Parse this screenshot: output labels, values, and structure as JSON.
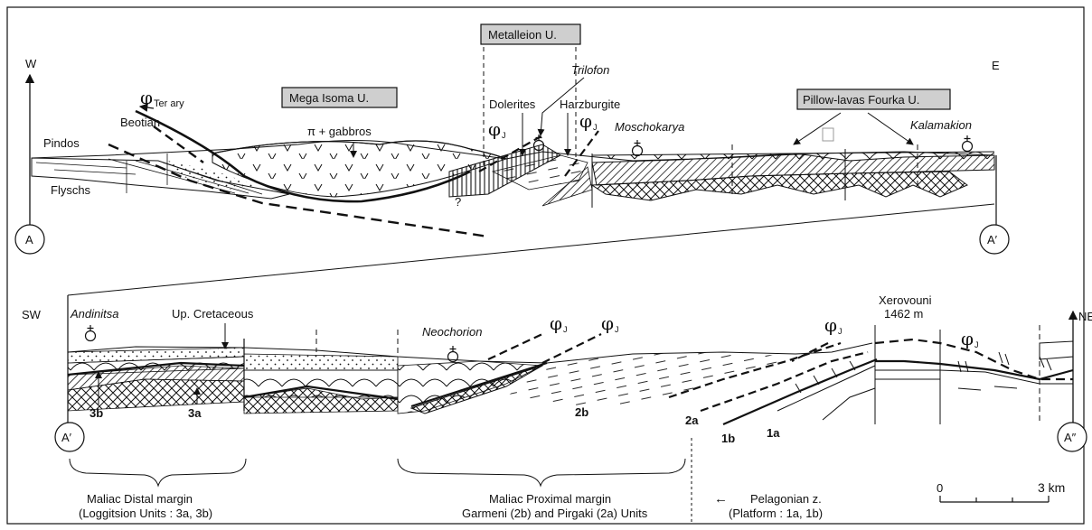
{
  "top": {
    "west": "W",
    "east": "E",
    "point_left": "A",
    "point_right": "A′",
    "units": {
      "metalleion": "Metalleion U.",
      "mega_isoma": "Mega Isoma U.",
      "pillow": "Pillow-lavas Fourka U."
    },
    "labels": {
      "phi": "φ",
      "tertiary": "Ter ary",
      "j": "J",
      "beotian": "Beotian",
      "pindos": "Pindos",
      "flyschs": "Flyschs",
      "pi_gabbros": "π + gabbros",
      "dolerites": "Dolerites",
      "trilofon": "Trilofon",
      "harzburgite": "Harzburgite",
      "moschokarya": "Moschokarya",
      "kalamakion": "Kalamakion",
      "question": "?"
    }
  },
  "bottom": {
    "sw": "SW",
    "ne": "NE",
    "point_left": "A′",
    "point_right": "A″",
    "labels": {
      "andinitsa": "Andinitsa",
      "up_cretaceous": "Up. Cretaceous",
      "neochorion": "Neochorion",
      "xerovouni": "Xerovouni",
      "xerovouni_alt": "1462 m",
      "phi": "φ",
      "j": "J",
      "u3b": "3b",
      "u3a": "3a",
      "u2b": "2b",
      "u2a": "2a",
      "u1b": "1b",
      "u1a": "1a"
    },
    "captions": {
      "distal_1": "Maliac Distal margin",
      "distal_2": "(Loggitsion Units : 3a, 3b)",
      "proximal_1": "Maliac Proximal margin",
      "proximal_2": "Garmeni (2b) and Pirgaki (2a) Units",
      "arrow": "←",
      "pelagonian_1": "Pelagonian z.",
      "pelagonian_2": "(Platform : 1a, 1b)"
    },
    "scale": {
      "zero": "0",
      "three": "3 km"
    }
  }
}
